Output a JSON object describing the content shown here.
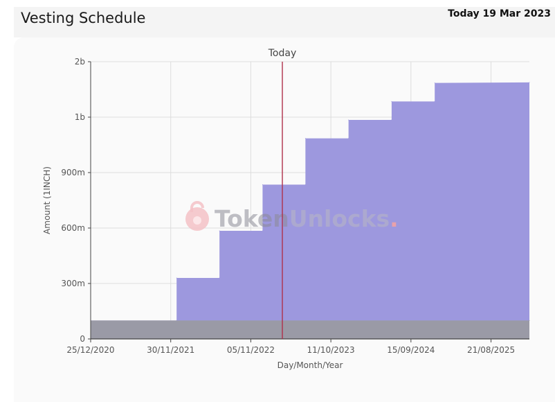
{
  "header": {
    "title": "Vesting Schedule",
    "today": "Today 19 Mar 2023"
  },
  "watermark": {
    "text_dark": "Token",
    "text_light": "Unlocks",
    "dot": ".",
    "icon": "lock-icon"
  },
  "colors": {
    "fill": "#9d98de",
    "base_fill": "#9a9aa6",
    "today_line": "#b0304a",
    "grid": "#dddddd"
  },
  "chart_data": {
    "type": "area",
    "title": "",
    "xlabel": "Day/Month/Year",
    "ylabel": "Amount (1INCH)",
    "today_marker": {
      "label": "Today",
      "date": "2023-03-19"
    },
    "x_ticks": [
      "25/12/2020",
      "30/11/2021",
      "05/11/2022",
      "11/10/2023",
      "15/09/2024",
      "21/08/2025"
    ],
    "x_tick_dates": [
      "2020-12-25",
      "2021-11-30",
      "2022-11-05",
      "2023-10-11",
      "2024-09-15",
      "2025-08-21"
    ],
    "xlim": [
      "2020-12-25",
      "2026-01-31"
    ],
    "y_ticks": [
      {
        "value": 0,
        "label": "0"
      },
      {
        "value": 300000000,
        "label": "300m"
      },
      {
        "value": 600000000,
        "label": "600m"
      },
      {
        "value": 900000000,
        "label": "900m"
      },
      {
        "value": 1200000000,
        "label": "1b"
      },
      {
        "value": 1500000000,
        "label": "2b"
      }
    ],
    "ylim": [
      0,
      1500000000
    ],
    "grid": true,
    "series": [
      {
        "values": [
          {
            "date": "2020-12-25",
            "amount": 100000000
          },
          {
            "date": "2021-12-25",
            "amount": 100000000
          },
          {
            "date": "2021-12-25",
            "amount": 330000000
          },
          {
            "date": "2022-06-25",
            "amount": 330000000
          },
          {
            "date": "2022-06-25",
            "amount": 585000000
          },
          {
            "date": "2022-12-25",
            "amount": 585000000
          },
          {
            "date": "2022-12-25",
            "amount": 835000000
          },
          {
            "date": "2023-06-25",
            "amount": 835000000
          },
          {
            "date": "2023-06-25",
            "amount": 1085000000
          },
          {
            "date": "2023-12-25",
            "amount": 1085000000
          },
          {
            "date": "2023-12-25",
            "amount": 1185000000
          },
          {
            "date": "2024-06-25",
            "amount": 1185000000
          },
          {
            "date": "2024-06-25",
            "amount": 1285000000
          },
          {
            "date": "2024-12-25",
            "amount": 1285000000
          },
          {
            "date": "2024-12-25",
            "amount": 1385000000
          },
          {
            "date": "2026-01-31",
            "amount": 1388000000
          }
        ]
      },
      {
        "values": [
          {
            "date": "2020-12-25",
            "amount": 100000000
          },
          {
            "date": "2026-01-31",
            "amount": 100000000
          }
        ]
      }
    ]
  }
}
